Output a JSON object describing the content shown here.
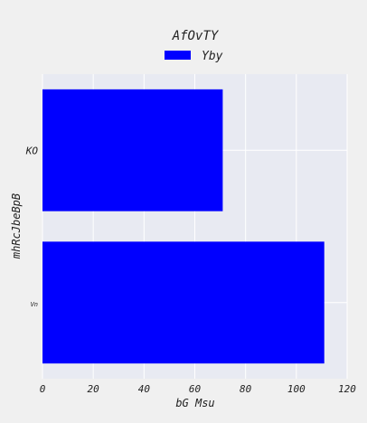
{
  "chart_data": {
    "type": "bar",
    "orientation": "horizontal",
    "title": "AfOvTY",
    "xlabel": "bG Msu",
    "ylabel": "mhRcJbeBpB",
    "categories": [
      "KO",
      "Vn"
    ],
    "series": [
      {
        "name": "Yby",
        "values": [
          71,
          111
        ]
      }
    ],
    "xlim": [
      0,
      120
    ],
    "xticks": [
      0,
      20,
      40,
      60,
      80,
      100,
      120
    ],
    "grid": true,
    "legend": "top-center"
  },
  "colors": {
    "background": "#f0f0f0",
    "plot_area": "#e8eaf2",
    "grid": "#ffffff",
    "bar": "#0000ff"
  }
}
